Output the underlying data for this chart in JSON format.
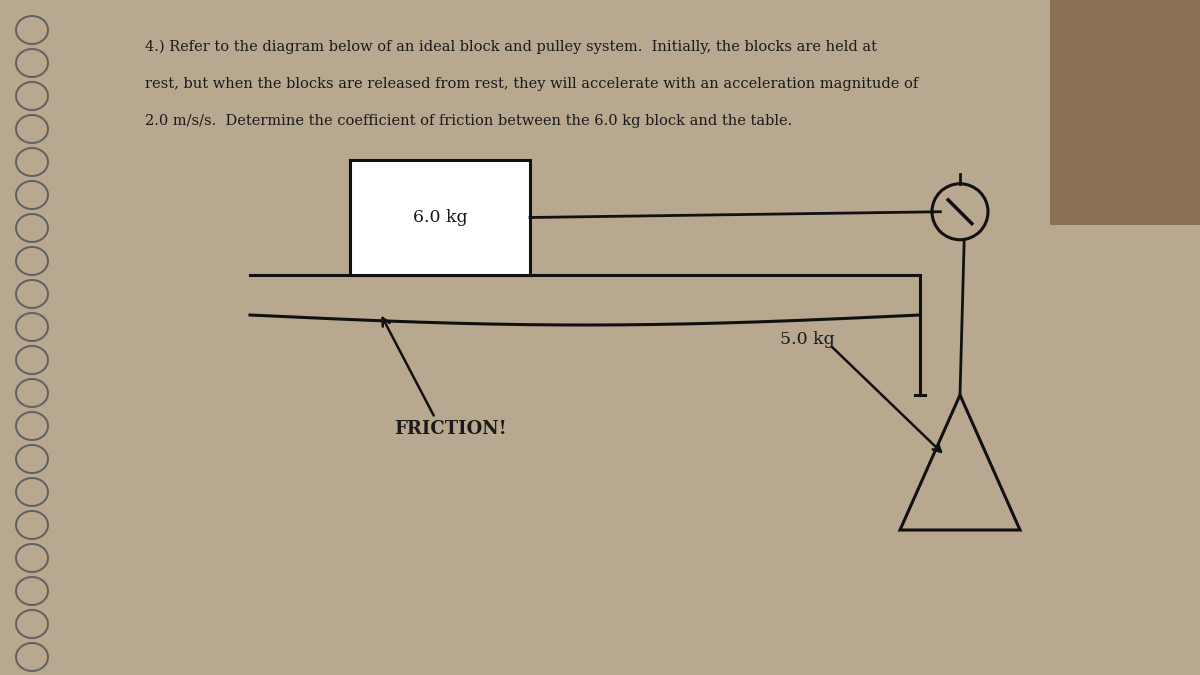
{
  "bg_color": "#b8a890",
  "paper_color": "#f0ede8",
  "title_line1": "4.) Refer to the diagram below of an ideal block and pulley system.  Initially, the blocks are held at",
  "title_line2": "rest, but when the blocks are released from rest, they will accelerate with an acceleration magnitude of",
  "title_line3": "2.0 m/s/s.  Determine the coefficient of friction between the 6.0 kg block and the table.",
  "block_label": "6.0 kg",
  "hanging_label": "5.0 kg",
  "friction_label": "FRICTION!",
  "title_fontsize": 10.5,
  "diagram_fontsize": 12.5,
  "line_color": "#111111",
  "text_color": "#1a1a1a"
}
